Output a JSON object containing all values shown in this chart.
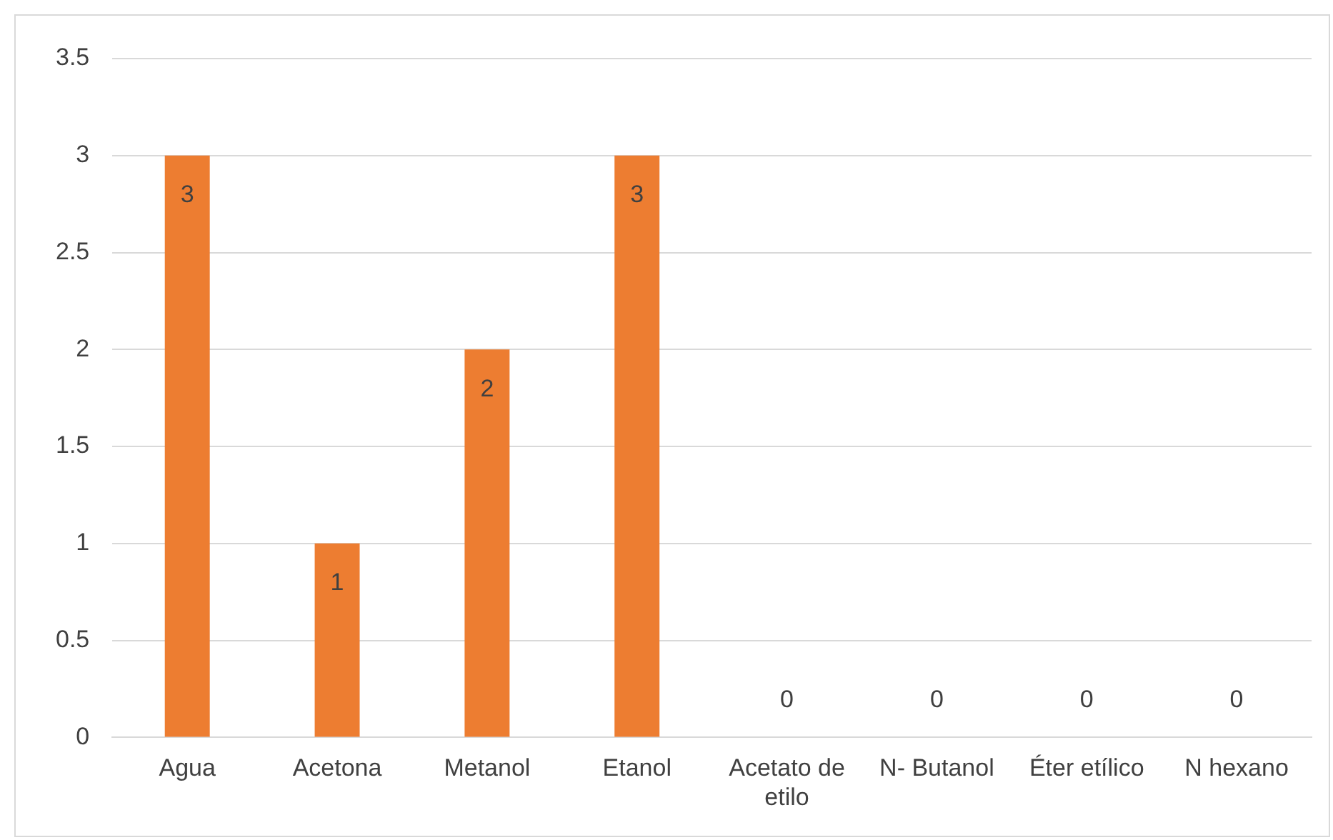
{
  "chart_data": {
    "type": "bar",
    "categories": [
      "Agua",
      "Acetona",
      "Metanol",
      "Etanol",
      "Acetato de etilo",
      "N- Butanol",
      "Éter etílico",
      "N hexano"
    ],
    "values": [
      3,
      1,
      2,
      3,
      0,
      0,
      0,
      0
    ],
    "color": "#ed7d31",
    "ylim": [
      0,
      3.5
    ],
    "yticks": [
      0,
      0.5,
      1,
      1.5,
      2,
      2.5,
      3,
      3.5
    ],
    "grid": "y",
    "legend": false,
    "data_labels": true
  }
}
